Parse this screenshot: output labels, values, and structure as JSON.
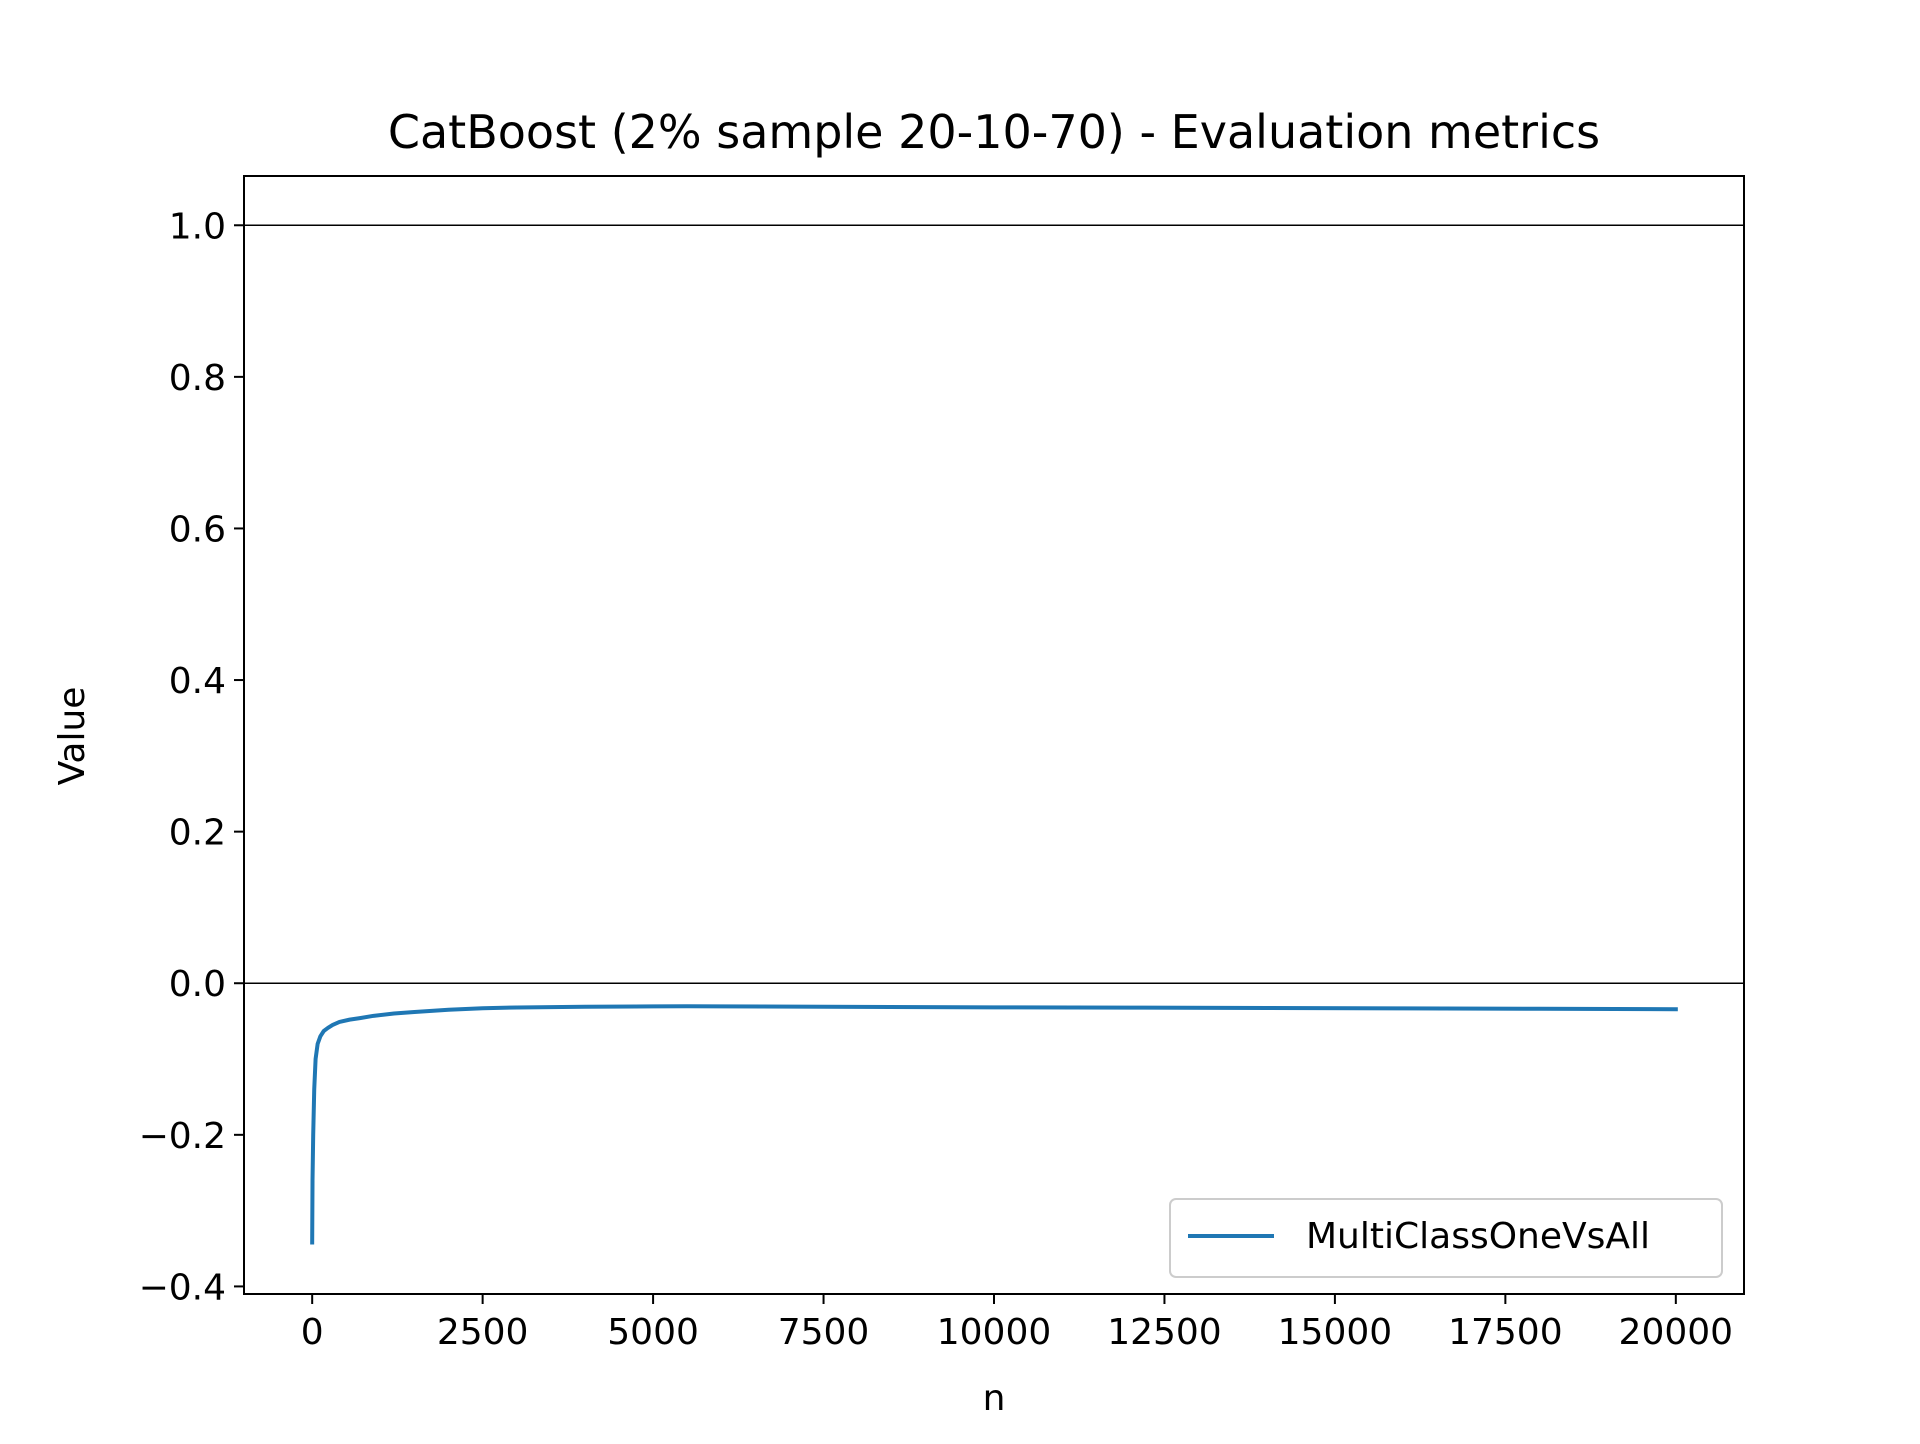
{
  "chart_data": {
    "type": "line",
    "title": "CatBoost (2% sample 20-10-70) - Evaluation metrics",
    "xlabel": "n",
    "ylabel": "Value",
    "xlim": [
      -1000,
      21000
    ],
    "ylim": [
      -0.41,
      1.065
    ],
    "xticks": [
      0,
      2500,
      5000,
      7500,
      10000,
      12500,
      15000,
      17500,
      20000
    ],
    "xtick_labels": [
      "0",
      "2500",
      "5000",
      "7500",
      "10000",
      "12500",
      "15000",
      "17500",
      "20000"
    ],
    "yticks": [
      -0.4,
      -0.2,
      0.0,
      0.2,
      0.4,
      0.6,
      0.8,
      1.0
    ],
    "ytick_labels": [
      "−0.4",
      "−0.2",
      "0.0",
      "0.2",
      "0.4",
      "0.6",
      "0.8",
      "1.0"
    ],
    "reference_lines": [
      0.0,
      1.0
    ],
    "grid": false,
    "legend_position": "lower-right",
    "series": [
      {
        "name": "MultiClassOneVsAll",
        "color": "#1f77b4",
        "x": [
          0,
          5,
          15,
          30,
          50,
          80,
          120,
          170,
          230,
          300,
          400,
          550,
          700,
          900,
          1200,
          1500,
          2000,
          2500,
          3000,
          4000,
          5000,
          5500,
          6000,
          8000,
          10000,
          12000,
          14000,
          16000,
          18000,
          20000
        ],
        "y": [
          -0.342,
          -0.26,
          -0.2,
          -0.14,
          -0.1,
          -0.08,
          -0.07,
          -0.063,
          -0.059,
          -0.055,
          -0.051,
          -0.048,
          -0.046,
          -0.043,
          -0.04,
          -0.038,
          -0.035,
          -0.033,
          -0.032,
          -0.031,
          -0.0305,
          -0.0303,
          -0.0305,
          -0.0312,
          -0.0318,
          -0.0322,
          -0.0327,
          -0.0332,
          -0.0337,
          -0.0343
        ]
      }
    ]
  }
}
